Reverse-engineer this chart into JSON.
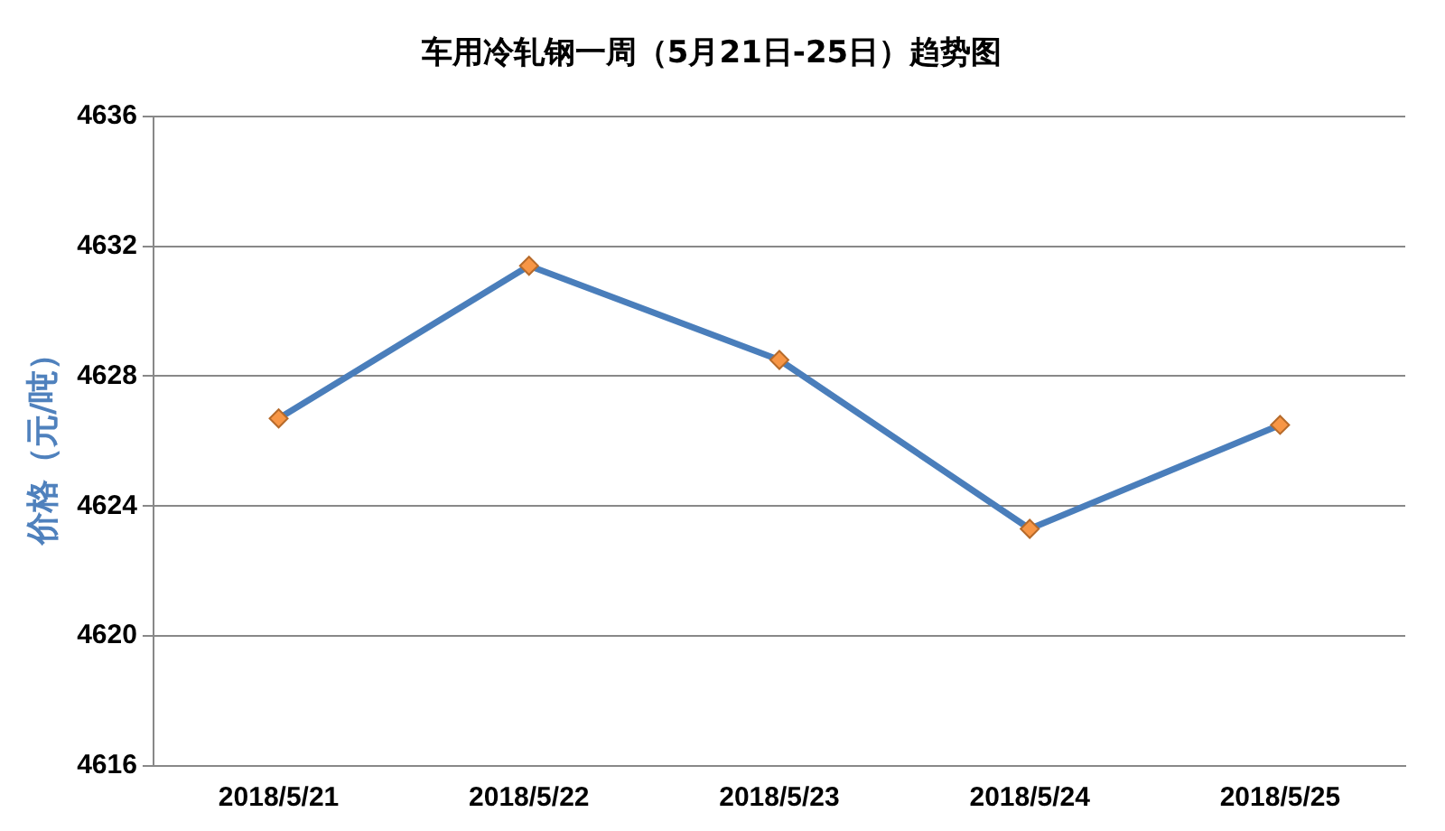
{
  "chart_data": {
    "type": "line",
    "title": "车用冷轧钢一周（5月21日-25日）趋势图",
    "ylabel": "价格（元/吨）",
    "categories": [
      "2018/5/21",
      "2018/5/22",
      "2018/5/23",
      "2018/5/24",
      "2018/5/25"
    ],
    "series": [
      {
        "color": "#4a7ebb",
        "values": [
          4626.7,
          4631.4,
          4628.5,
          4623.3,
          4626.5
        ]
      }
    ],
    "ylim": [
      4616,
      4636
    ],
    "yticks": [
      4616,
      4620,
      4624,
      4628,
      4632,
      4636
    ],
    "grid": "y",
    "legend": false,
    "marker": "diamond",
    "line_style": "solid"
  }
}
